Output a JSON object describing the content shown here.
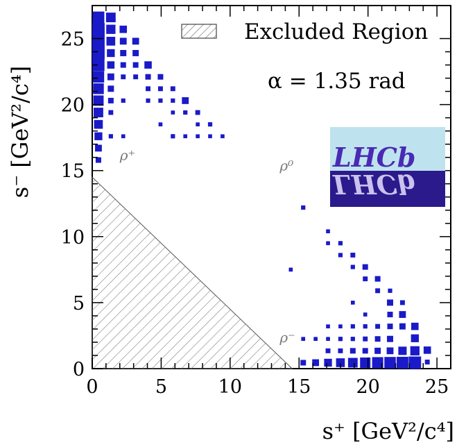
{
  "chart_data": {
    "type": "heatmap",
    "title": "",
    "xlabel": "s⁺ [GeV²/c⁴]",
    "ylabel": "s⁻ [GeV²/c⁴]",
    "xlim": [
      0,
      26
    ],
    "ylim": [
      0,
      27.5
    ],
    "x_ticks": [
      0,
      5,
      10,
      15,
      20,
      25
    ],
    "y_ticks": [
      0,
      5,
      10,
      15,
      20,
      25
    ],
    "grid": false,
    "legend": {
      "position": "top-right",
      "entries": [
        "Excluded Region"
      ]
    },
    "annotation": "α = 1.35 rad",
    "region_labels": [
      {
        "text": "ρ⁺",
        "x": 2.0,
        "y": 15.8
      },
      {
        "text": "ρ⁰",
        "x": 13.6,
        "y": 15.0
      },
      {
        "text": "ρ⁻",
        "x": 13.6,
        "y": 2.0
      }
    ],
    "excluded_region": {
      "vertices": [
        [
          0,
          0
        ],
        [
          0,
          14.5
        ],
        [
          14.5,
          0
        ]
      ]
    },
    "bin_size": 0.9,
    "cells": [
      [
        0.45,
        26.6,
        0.9
      ],
      [
        0.45,
        25.7,
        1.0
      ],
      [
        0.45,
        24.8,
        1.0
      ],
      [
        0.45,
        23.9,
        1.0
      ],
      [
        0.45,
        23.0,
        0.95
      ],
      [
        0.45,
        22.1,
        0.85
      ],
      [
        0.45,
        21.2,
        0.75
      ],
      [
        0.45,
        20.3,
        0.7
      ],
      [
        0.45,
        19.4,
        0.6
      ],
      [
        0.45,
        18.5,
        0.5
      ],
      [
        0.45,
        17.6,
        0.4
      ],
      [
        0.45,
        16.7,
        0.3
      ],
      [
        0.45,
        15.8,
        0.2
      ],
      [
        1.35,
        26.6,
        0.6
      ],
      [
        1.35,
        25.7,
        0.55
      ],
      [
        1.35,
        24.8,
        0.5
      ],
      [
        1.35,
        23.9,
        0.4
      ],
      [
        1.35,
        23.0,
        0.35
      ],
      [
        1.35,
        22.1,
        0.3
      ],
      [
        1.35,
        21.2,
        0.25
      ],
      [
        1.35,
        20.3,
        0.2
      ],
      [
        1.35,
        19.4,
        0.15
      ],
      [
        1.35,
        17.6,
        0.12
      ],
      [
        2.25,
        25.7,
        0.35
      ],
      [
        2.25,
        24.8,
        0.3
      ],
      [
        2.25,
        23.9,
        0.25
      ],
      [
        2.25,
        23.0,
        0.2
      ],
      [
        2.25,
        22.1,
        0.15
      ],
      [
        2.25,
        20.3,
        0.12
      ],
      [
        2.25,
        17.6,
        0.1
      ],
      [
        3.15,
        24.8,
        0.3
      ],
      [
        3.15,
        23.9,
        0.25
      ],
      [
        3.15,
        23.0,
        0.2
      ],
      [
        3.15,
        22.1,
        0.15
      ],
      [
        4.05,
        23.0,
        0.35
      ],
      [
        4.05,
        22.1,
        0.2
      ],
      [
        4.05,
        21.2,
        0.15
      ],
      [
        4.05,
        20.3,
        0.12
      ],
      [
        4.95,
        22.1,
        0.2
      ],
      [
        4.95,
        21.2,
        0.15
      ],
      [
        4.95,
        20.3,
        0.12
      ],
      [
        4.95,
        18.5,
        0.1
      ],
      [
        5.85,
        21.2,
        0.15
      ],
      [
        5.85,
        20.3,
        0.12
      ],
      [
        5.85,
        19.4,
        0.1
      ],
      [
        5.85,
        17.6,
        0.12
      ],
      [
        6.75,
        20.3,
        0.3
      ],
      [
        6.75,
        19.4,
        0.12
      ],
      [
        6.75,
        17.6,
        0.1
      ],
      [
        7.65,
        19.4,
        0.15
      ],
      [
        7.65,
        18.5,
        0.1
      ],
      [
        7.65,
        17.6,
        0.1
      ],
      [
        8.55,
        18.5,
        0.12
      ],
      [
        8.55,
        17.6,
        0.1
      ],
      [
        9.45,
        17.6,
        0.1
      ],
      [
        15.3,
        12.2,
        0.12
      ],
      [
        14.4,
        7.5,
        0.1
      ],
      [
        17.1,
        10.4,
        0.1
      ],
      [
        17.1,
        9.5,
        0.1
      ],
      [
        18.0,
        9.5,
        0.12
      ],
      [
        18.0,
        8.6,
        0.12
      ],
      [
        18.9,
        8.6,
        0.15
      ],
      [
        18.9,
        7.7,
        0.12
      ],
      [
        19.8,
        7.7,
        0.2
      ],
      [
        19.8,
        6.8,
        0.15
      ],
      [
        20.7,
        6.8,
        0.2
      ],
      [
        20.7,
        5.9,
        0.15
      ],
      [
        21.6,
        5.0,
        0.25
      ],
      [
        21.6,
        4.1,
        0.2
      ],
      [
        22.5,
        4.1,
        0.3
      ],
      [
        22.5,
        3.2,
        0.25
      ],
      [
        23.4,
        3.2,
        0.35
      ],
      [
        23.4,
        2.3,
        0.4
      ],
      [
        24.3,
        1.4,
        0.35
      ],
      [
        24.3,
        0.5,
        0.15
      ],
      [
        15.3,
        0.45,
        0.2
      ],
      [
        16.2,
        0.45,
        0.3
      ],
      [
        17.1,
        0.45,
        0.4
      ],
      [
        18.0,
        0.45,
        0.5
      ],
      [
        18.9,
        0.45,
        0.6
      ],
      [
        19.8,
        0.45,
        0.7
      ],
      [
        20.7,
        0.45,
        0.8
      ],
      [
        21.6,
        0.45,
        0.85
      ],
      [
        22.5,
        0.45,
        0.9
      ],
      [
        23.4,
        0.45,
        1.0
      ],
      [
        17.1,
        1.35,
        0.15
      ],
      [
        18.0,
        1.35,
        0.15
      ],
      [
        18.9,
        1.35,
        0.2
      ],
      [
        19.8,
        1.35,
        0.2
      ],
      [
        20.7,
        1.35,
        0.25
      ],
      [
        21.6,
        1.35,
        0.3
      ],
      [
        22.5,
        1.35,
        0.45
      ],
      [
        23.4,
        1.35,
        0.55
      ],
      [
        15.3,
        2.25,
        0.1
      ],
      [
        16.2,
        2.25,
        0.1
      ],
      [
        17.1,
        2.25,
        0.1
      ],
      [
        18.0,
        2.25,
        0.12
      ],
      [
        18.9,
        2.25,
        0.12
      ],
      [
        19.8,
        2.25,
        0.15
      ],
      [
        20.7,
        2.25,
        0.2
      ],
      [
        21.6,
        2.25,
        0.25
      ],
      [
        17.1,
        3.2,
        0.1
      ],
      [
        18.0,
        3.2,
        0.1
      ],
      [
        18.9,
        3.2,
        0.12
      ],
      [
        19.8,
        3.2,
        0.12
      ],
      [
        20.7,
        3.2,
        0.15
      ],
      [
        21.6,
        3.2,
        0.2
      ],
      [
        22.5,
        5.0,
        0.15
      ],
      [
        21.6,
        5.9,
        0.12
      ],
      [
        19.8,
        4.1,
        0.1
      ],
      [
        18.9,
        5.0,
        0.1
      ]
    ]
  },
  "logo": {
    "text": "LHCb",
    "top_color": "#bfe3ee",
    "bottom_color": "#2b1a8c",
    "text_color": "#4a2ab5"
  },
  "colors": {
    "cell": "#1a1ac8",
    "hatch": "#888888"
  }
}
